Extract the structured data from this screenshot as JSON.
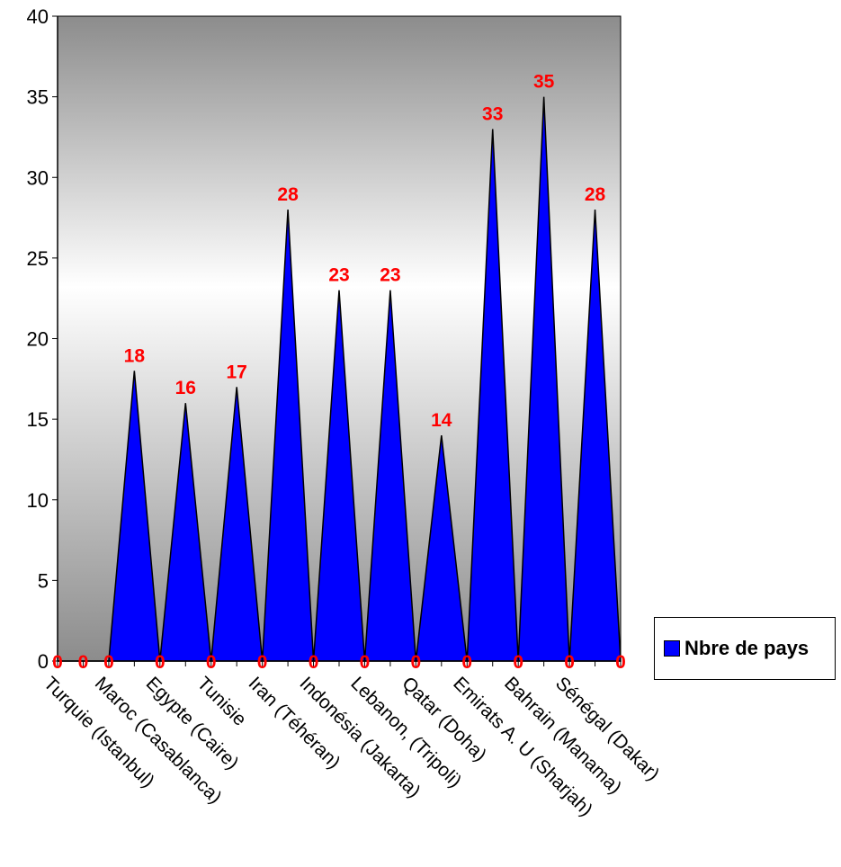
{
  "chart_data": {
    "type": "area",
    "categories": [
      "",
      "Turquie (Istanbul)",
      "",
      "Maroc (Casablanca)",
      "",
      "Egypte (Caire)",
      "",
      "Tunisie",
      "",
      "Iran (Téhéran)",
      "",
      "Indonésia (Jakarta)",
      "",
      "Lebanon, (Tripoli)",
      "",
      "Qatar (Doha)",
      "",
      "Emirats A. U (Sharjah)",
      "",
      "Bahrain (Manama)",
      "",
      "Sénégal (Dakar)",
      ""
    ],
    "series": [
      {
        "name": "Nbre de pays",
        "values": [
          0,
          0,
          0,
          18,
          0,
          16,
          0,
          17,
          0,
          28,
          0,
          23,
          0,
          23,
          0,
          14,
          0,
          33,
          0,
          35,
          0,
          28,
          0
        ],
        "color": "#0000ff"
      }
    ],
    "y_ticks": [
      "0",
      "5",
      "10",
      "15",
      "20",
      "25",
      "30",
      "35",
      "40"
    ],
    "x_tick_labels": [
      "Turquie (Istanbul)",
      "Maroc (Casablanca)",
      "Egypte (Caire)",
      "Tunisie",
      "Iran (Téhéran)",
      "Indonésia (Jakarta)",
      "Lebanon, (Tripoli)",
      "Qatar (Doha)",
      "Emirats A. U (Sharjah)",
      "Bahrain (Manama)",
      "Sénégal (Dakar)"
    ],
    "data_labels": [
      "0",
      "0",
      "0",
      "18",
      "0",
      "16",
      "0",
      "17",
      "0",
      "28",
      "0",
      "23",
      "0",
      "23",
      "0",
      "14",
      "0",
      "33",
      "0",
      "35",
      "0",
      "28",
      "0"
    ],
    "ylim": [
      0,
      40
    ],
    "legend_position": "right",
    "grid": false,
    "data_label_color": "#ff0000",
    "plot_background": "gradient-gray"
  },
  "legend": {
    "label": "Nbre de pays"
  }
}
